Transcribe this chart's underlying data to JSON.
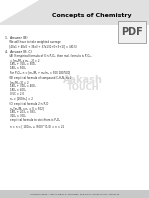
{
  "title": "Concepts of Chemistry",
  "header_bg": "#e0e0e0",
  "page_bg": "#ffffff",
  "footer_text": "Corporate Office : Aakash Tower, 8, Pusa Road, New Delhi-110005 Ph.011-47623456",
  "footer_bg": "#c8c8c8",
  "watermark_line1": "Aakash",
  "watermark_line2": "TOUCH",
  "pdf_label": "PDF",
  "body_lines": [
    [
      5,
      162,
      "1.  Answer (B)",
      2.3
    ],
    [
      5,
      158,
      "     We will have to take weighted average",
      1.9
    ],
    [
      5,
      154,
      "     [40x1 + 40x0 + 35x3 + 37x1/(1+0+3+1)] = (40.5)",
      1.9
    ],
    [
      5,
      148,
      "4.  Answer (B, C)",
      2.3
    ],
    [
      5,
      144,
      "     (A) If empirical formula of X is P₂O₅, then mol. formula is P₄O₁₀",
      1.9
    ],
    [
      10,
      140,
      "= [m₂/M₂ x m₂ - 2] = 2",
      1.9
    ],
    [
      10,
      136,
      "180₂ + 320₂ = 500₂",
      1.9
    ],
    [
      10,
      132,
      "180₂ = 500₂",
      1.9
    ],
    [
      10,
      128,
      "For P₄O₁₀ n = [m₂/M₂ + m₂/m₂ = 500 180/500]",
      1.9
    ],
    [
      5,
      122,
      "     (B) empirical formula of compound C₇H₅N, n=2",
      1.9
    ],
    [
      10,
      118,
      "[m₂/M₂ /2] = 2",
      1.9
    ],
    [
      10,
      114,
      "180₂ + 320₂ = 400₂",
      1.9
    ],
    [
      10,
      110,
      "180₂ = 400₂",
      1.9
    ],
    [
      10,
      106,
      "0.5C = 2.0",
      1.9
    ],
    [
      10,
      102,
      "n₂ = [200/n₂] = 2",
      1.9
    ],
    [
      5,
      96,
      "     (C) empirical formula 2 is P₂O",
      1.9
    ],
    [
      10,
      92,
      "n₂/[m₂/M₂ x n₂ = 0 = 502]",
      1.9
    ],
    [
      10,
      88,
      "180₂ + 203₂ = 383₂",
      1.9
    ],
    [
      10,
      84,
      "320₂ = 300₂",
      1.9
    ],
    [
      10,
      80,
      "empirical formula to stoichiom is P₂O₂",
      1.9
    ],
    [
      10,
      74,
      "n = n = [ 180/n₂ ≈ (500)^(1/2) = n = 21",
      1.9
    ]
  ]
}
